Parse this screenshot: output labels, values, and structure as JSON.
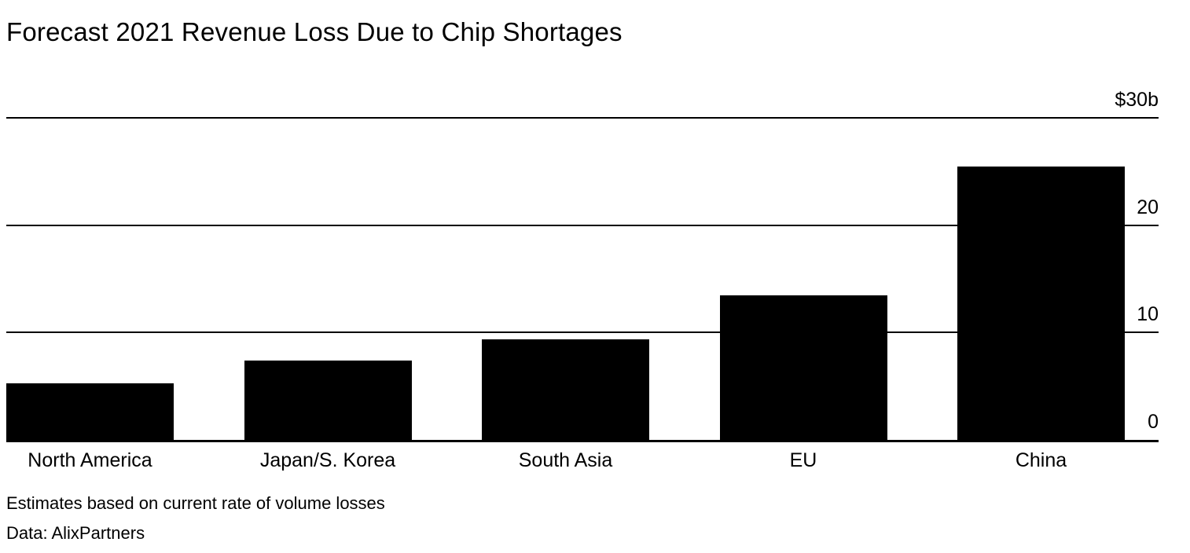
{
  "page": {
    "background_color": "#ffffff",
    "text_color": "#000000"
  },
  "chart_data": {
    "type": "bar",
    "title": "Forecast 2021 Revenue Loss Due to Chip Shortages",
    "categories": [
      "North America",
      "Japan/S. Korea",
      "South Asia",
      "EU",
      "China"
    ],
    "values": [
      5.3,
      7.4,
      9.4,
      13.5,
      25.5
    ],
    "unit": "billion USD",
    "xlabel": "",
    "ylabel": "",
    "ylim": [
      0,
      30
    ],
    "yticks": [
      0,
      10,
      20,
      30
    ],
    "ytick_labels": [
      "0",
      "10",
      "20",
      "$30b"
    ],
    "grid": true,
    "legend": false,
    "bar_color": "#000000",
    "gridline_color": "#000000",
    "tick_label_position": "right-above-line"
  },
  "footnotes": {
    "note": "Estimates based on current rate of volume losses",
    "source": "Data: AlixPartners"
  }
}
